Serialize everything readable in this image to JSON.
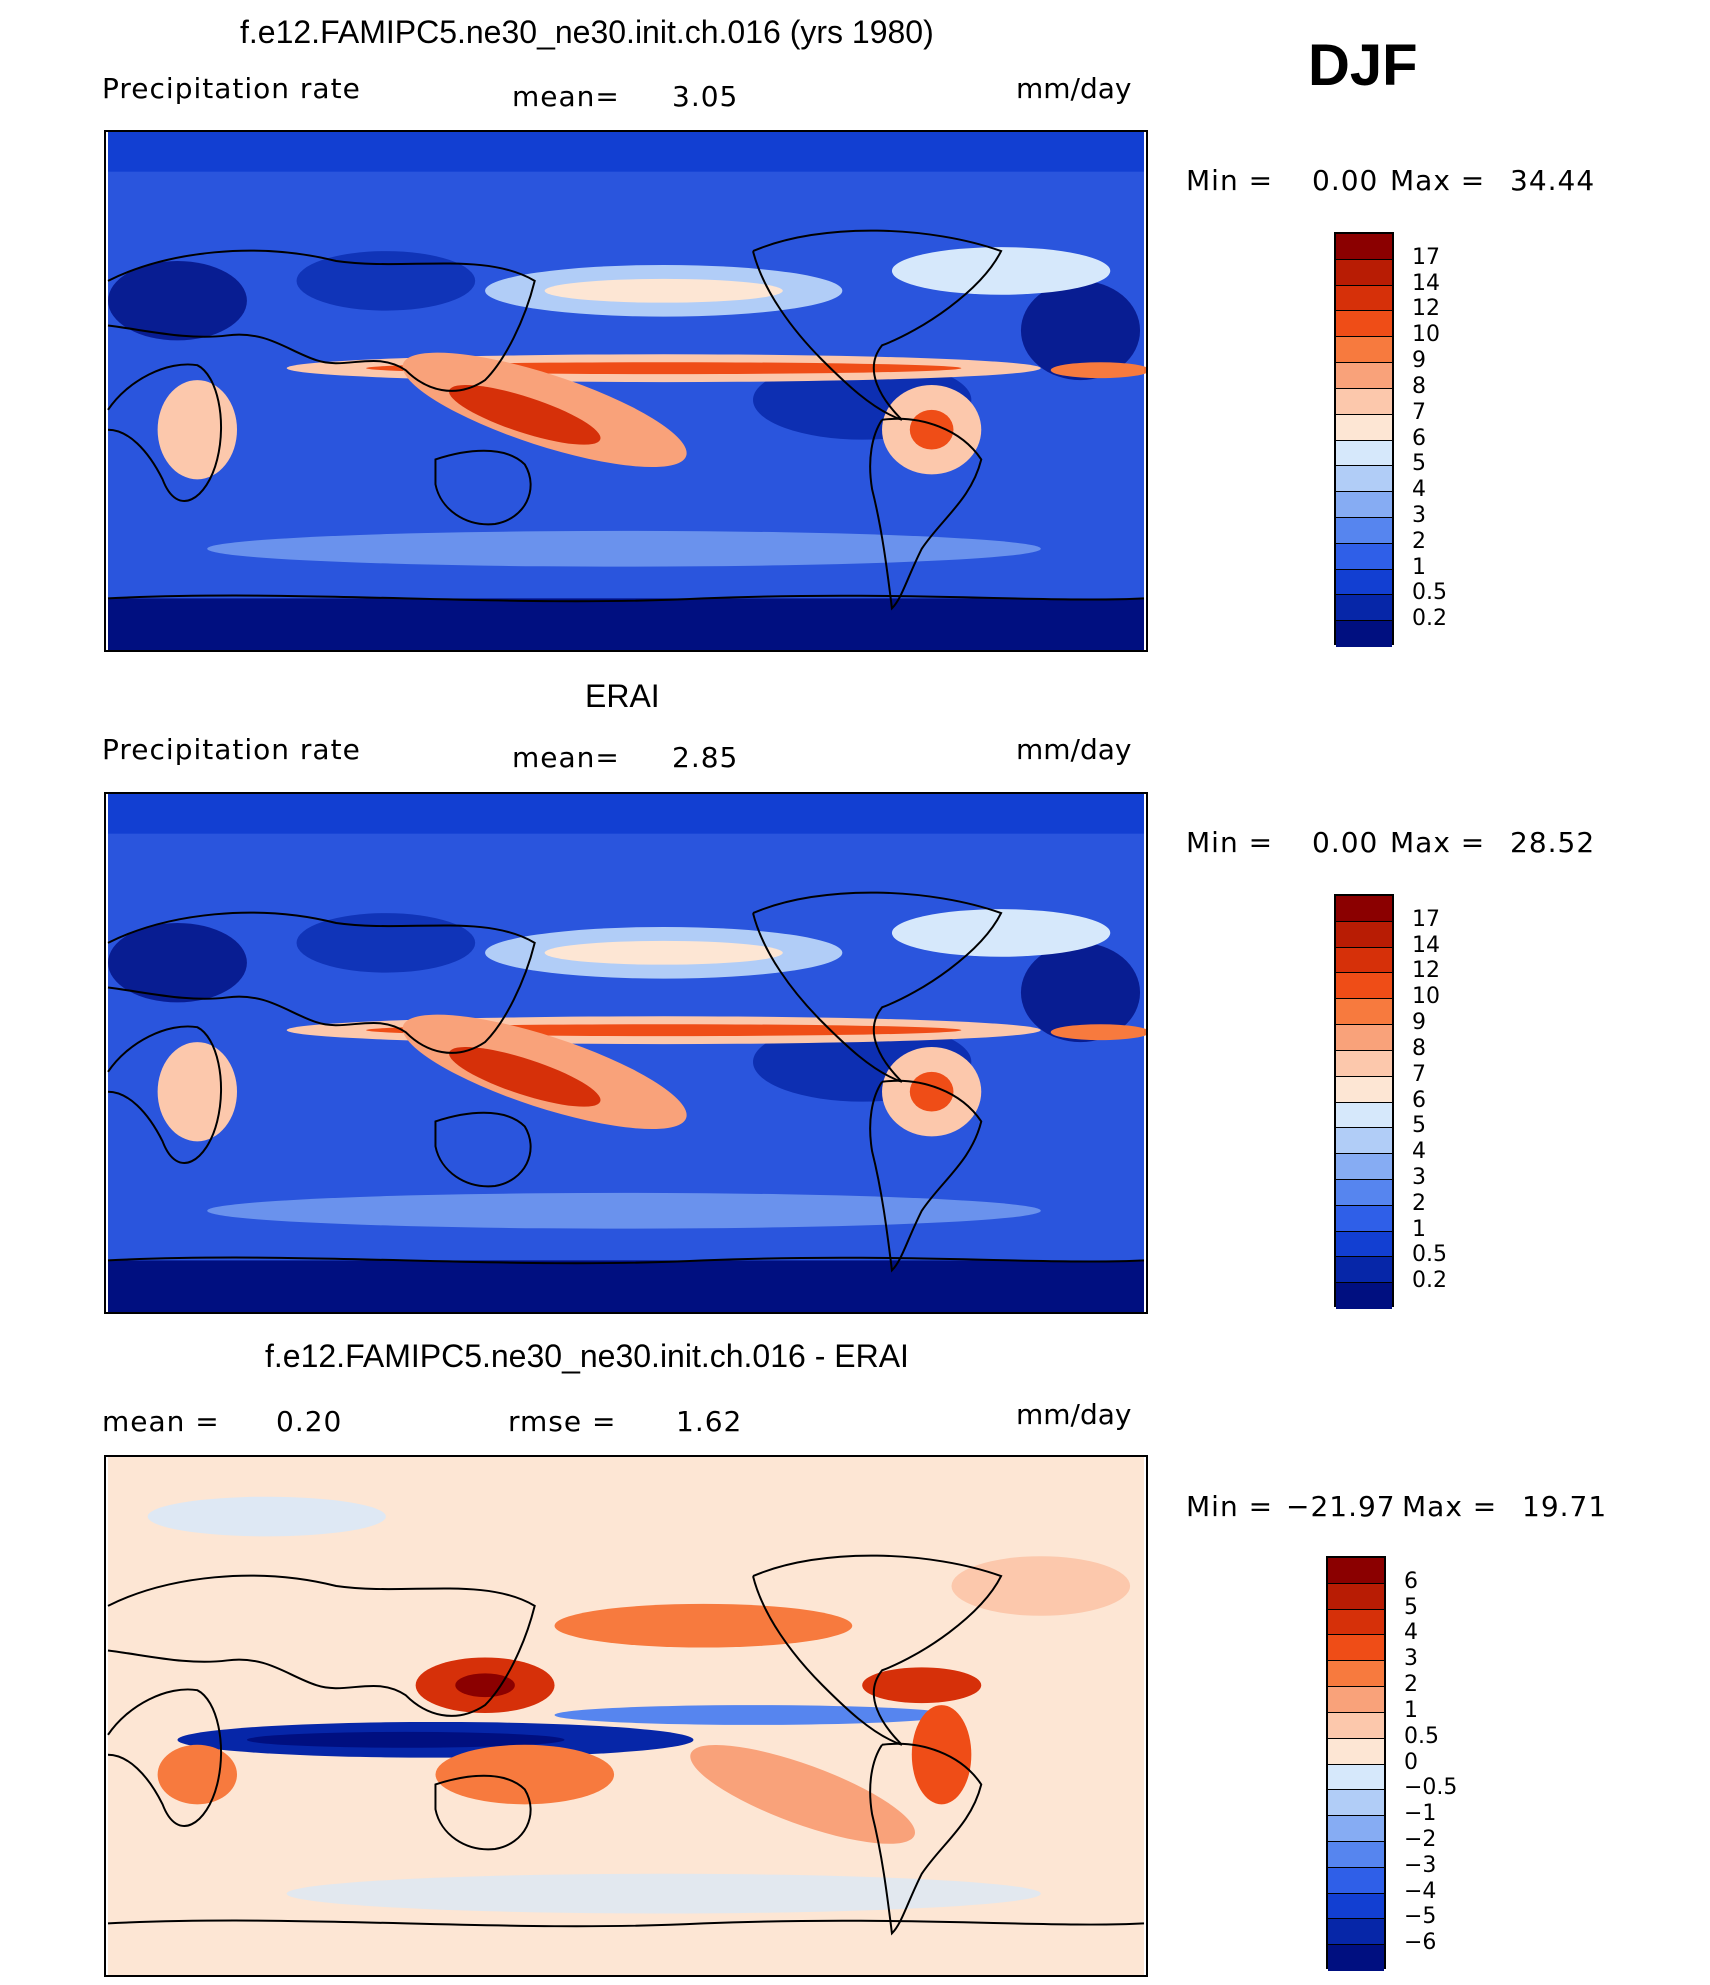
{
  "season": "DJF",
  "panels": [
    {
      "title": "f.e12.FAMIPC5.ne30_ne30.init.ch.016 (yrs 1980)",
      "left_label": "Precipitation  rate",
      "mid_label": "mean=",
      "mid_value": "3.05",
      "units": "mm/day",
      "min_label": "Min  =",
      "min_value": "0.00",
      "max_label": "Max  =",
      "max_value": "34.44",
      "colorbar_labels": [
        "17",
        "14",
        "12",
        "10",
        "9",
        "8",
        "7",
        "6",
        "5",
        "4",
        "3",
        "2",
        "1",
        "0.5",
        "0.2"
      ],
      "colorbar_colors": [
        "#8b0000",
        "#b81c04",
        "#d63009",
        "#ef4d17",
        "#f77a3e",
        "#f9a27a",
        "#fcc8ac",
        "#fde6d4",
        "#d6e8fb",
        "#b1cdf7",
        "#86acf3",
        "#5685ef",
        "#2f5fe8",
        "#123fd2",
        "#0626a8",
        "#000f80"
      ],
      "shading": "sequential",
      "bg": "#2a55dd"
    },
    {
      "title": "ERAI",
      "left_label": "Precipitation  rate",
      "mid_label": "mean=",
      "mid_value": "2.85",
      "units": "mm/day",
      "min_label": "Min  =",
      "min_value": "0.00",
      "max_label": "Max  =",
      "max_value": "28.52",
      "colorbar_labels": [
        "17",
        "14",
        "12",
        "10",
        "9",
        "8",
        "7",
        "6",
        "5",
        "4",
        "3",
        "2",
        "1",
        "0.5",
        "0.2"
      ],
      "colorbar_colors": [
        "#8b0000",
        "#b81c04",
        "#d63009",
        "#ef4d17",
        "#f77a3e",
        "#f9a27a",
        "#fcc8ac",
        "#fde6d4",
        "#d6e8fb",
        "#b1cdf7",
        "#86acf3",
        "#5685ef",
        "#2f5fe8",
        "#123fd2",
        "#0626a8",
        "#000f80"
      ],
      "shading": "sequential",
      "bg": "#2a55dd"
    },
    {
      "title": "f.e12.FAMIPC5.ne30_ne30.init.ch.016 - ERAI",
      "left_label": "mean  =",
      "left_value": "0.20",
      "mid_label": "rmse  =",
      "mid_value": "1.62",
      "units": "mm/day",
      "min_label": "Min  =",
      "min_value": "−21.97",
      "max_label": "Max  =",
      "max_value": "19.71",
      "colorbar_labels": [
        "6",
        "5",
        "4",
        "3",
        "2",
        "1",
        "0.5",
        "0",
        "−0.5",
        "−1",
        "−2",
        "−3",
        "−4",
        "−5",
        "−6"
      ],
      "colorbar_colors": [
        "#8b0000",
        "#b81c04",
        "#d63009",
        "#ef4d17",
        "#f77a3e",
        "#f9a27a",
        "#fcc8ac",
        "#fde6d4",
        "#d6e8fb",
        "#b1cdf7",
        "#86acf3",
        "#5685ef",
        "#2f5fe8",
        "#123fd2",
        "#0626a8",
        "#000f80"
      ],
      "shading": "diverging",
      "bg": "#fde6d4"
    }
  ]
}
